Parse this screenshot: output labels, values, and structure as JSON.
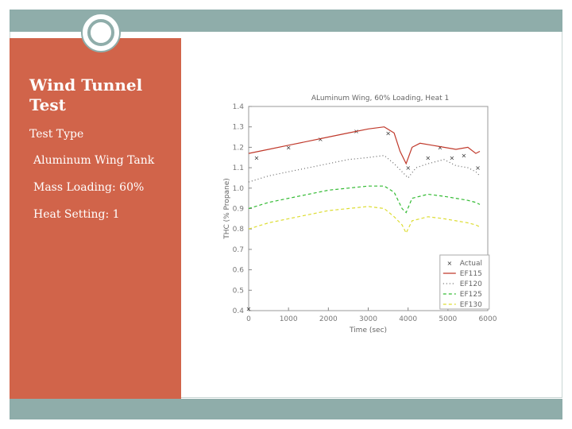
{
  "slide": {
    "title_line1": "Wind Tunnel",
    "title_line2": "Test",
    "items": [
      "Test Type",
      "Aluminum Wing Tank",
      "Mass Loading: 60%",
      "Heat Setting: 1"
    ]
  },
  "colors": {
    "accent": "#d1644a",
    "band": "#8fadaa"
  },
  "chart_data": {
    "type": "line",
    "title": "ALuminum Wing, 60% Loading, Heat 1",
    "xlabel": "Time (sec)",
    "ylabel": "THC (% Propane)",
    "xlim": [
      0,
      6000
    ],
    "ylim": [
      0.4,
      1.4
    ],
    "xticks": [
      0,
      1000,
      2000,
      3000,
      4000,
      5000,
      6000
    ],
    "xtick_labels": [
      "0",
      "1000",
      "2000",
      "3000",
      "4000",
      "5000",
      "6000"
    ],
    "yticks": [
      0.4,
      0.5,
      0.6,
      0.7,
      0.8,
      0.9,
      1.0,
      1.1,
      1.2,
      1.3,
      1.4
    ],
    "ytick_labels": [
      "0.4",
      "0.5",
      "0.6",
      "0.7",
      "0.8",
      "0.9",
      "1.0",
      "1.1",
      "1.2",
      "1.3",
      "1.4"
    ],
    "legend_position": "bottom-right",
    "series": [
      {
        "name": "Actual",
        "color": "#333333",
        "style": "marker",
        "points": [
          [
            200,
            1.15
          ],
          [
            1000,
            1.2
          ],
          [
            1800,
            1.24
          ],
          [
            2700,
            1.28
          ],
          [
            3500,
            1.27
          ],
          [
            4000,
            1.1
          ],
          [
            4500,
            1.15
          ],
          [
            4800,
            1.2
          ],
          [
            5100,
            1.15
          ],
          [
            5400,
            1.16
          ],
          [
            5750,
            1.1
          ],
          [
            0,
            0.41
          ]
        ]
      },
      {
        "name": "EF115",
        "color": "#c0392b",
        "style": "solid",
        "points": [
          [
            0,
            1.17
          ],
          [
            500,
            1.19
          ],
          [
            1000,
            1.21
          ],
          [
            1500,
            1.23
          ],
          [
            2000,
            1.25
          ],
          [
            2500,
            1.27
          ],
          [
            3000,
            1.29
          ],
          [
            3400,
            1.3
          ],
          [
            3650,
            1.27
          ],
          [
            3800,
            1.18
          ],
          [
            3950,
            1.12
          ],
          [
            4100,
            1.2
          ],
          [
            4300,
            1.22
          ],
          [
            4600,
            1.21
          ],
          [
            4900,
            1.2
          ],
          [
            5200,
            1.19
          ],
          [
            5500,
            1.2
          ],
          [
            5700,
            1.17
          ],
          [
            5800,
            1.18
          ]
        ]
      },
      {
        "name": "EF120",
        "color": "#666666",
        "style": "dotted",
        "points": [
          [
            0,
            1.03
          ],
          [
            500,
            1.06
          ],
          [
            1000,
            1.08
          ],
          [
            1500,
            1.1
          ],
          [
            2000,
            1.12
          ],
          [
            2500,
            1.14
          ],
          [
            3000,
            1.15
          ],
          [
            3400,
            1.16
          ],
          [
            3650,
            1.12
          ],
          [
            3850,
            1.08
          ],
          [
            4000,
            1.05
          ],
          [
            4200,
            1.1
          ],
          [
            4500,
            1.12
          ],
          [
            4900,
            1.14
          ],
          [
            5200,
            1.11
          ],
          [
            5500,
            1.1
          ],
          [
            5700,
            1.08
          ],
          [
            5800,
            1.06
          ]
        ]
      },
      {
        "name": "EF125",
        "color": "#33bb33",
        "style": "dashed",
        "points": [
          [
            0,
            0.9
          ],
          [
            500,
            0.93
          ],
          [
            1000,
            0.95
          ],
          [
            1500,
            0.97
          ],
          [
            2000,
            0.99
          ],
          [
            2500,
            1.0
          ],
          [
            3000,
            1.01
          ],
          [
            3400,
            1.01
          ],
          [
            3650,
            0.98
          ],
          [
            3850,
            0.9
          ],
          [
            3950,
            0.88
          ],
          [
            4100,
            0.95
          ],
          [
            4500,
            0.97
          ],
          [
            4900,
            0.96
          ],
          [
            5200,
            0.95
          ],
          [
            5500,
            0.94
          ],
          [
            5700,
            0.93
          ],
          [
            5800,
            0.92
          ]
        ]
      },
      {
        "name": "EF130",
        "color": "#dddd33",
        "style": "dashed",
        "points": [
          [
            0,
            0.8
          ],
          [
            500,
            0.83
          ],
          [
            1000,
            0.85
          ],
          [
            1500,
            0.87
          ],
          [
            2000,
            0.89
          ],
          [
            2500,
            0.9
          ],
          [
            3000,
            0.91
          ],
          [
            3400,
            0.9
          ],
          [
            3650,
            0.86
          ],
          [
            3850,
            0.82
          ],
          [
            3950,
            0.78
          ],
          [
            4100,
            0.84
          ],
          [
            4500,
            0.86
          ],
          [
            4900,
            0.85
          ],
          [
            5200,
            0.84
          ],
          [
            5500,
            0.83
          ],
          [
            5700,
            0.82
          ],
          [
            5800,
            0.81
          ]
        ]
      }
    ]
  }
}
